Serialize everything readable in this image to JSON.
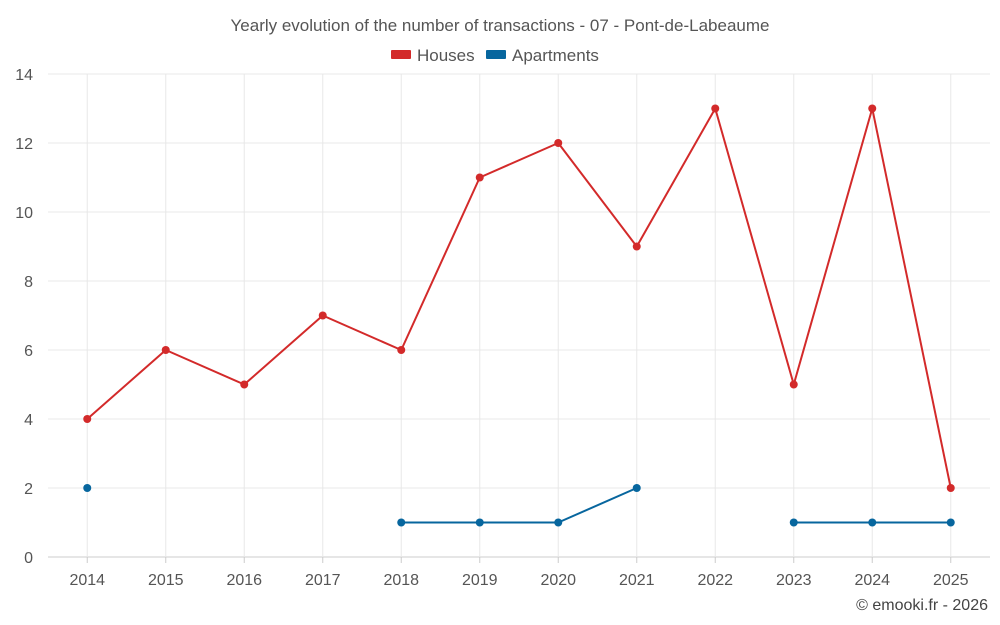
{
  "chart_data": {
    "type": "line",
    "title": "Yearly evolution of the number of transactions - 07 - Pont-de-Labeaume",
    "categories": [
      "2014",
      "2015",
      "2016",
      "2017",
      "2018",
      "2019",
      "2020",
      "2021",
      "2022",
      "2023",
      "2024",
      "2025"
    ],
    "series": [
      {
        "name": "Houses",
        "color": "#d32a2a",
        "values": [
          4,
          6,
          5,
          7,
          6,
          11,
          12,
          9,
          13,
          5,
          13,
          2
        ]
      },
      {
        "name": "Apartments",
        "color": "#07669e",
        "values": [
          2,
          null,
          null,
          null,
          1,
          1,
          1,
          2,
          null,
          1,
          1,
          1
        ]
      }
    ],
    "ylim": [
      0,
      14
    ],
    "yticks": [
      0,
      2,
      4,
      6,
      8,
      10,
      12,
      14
    ],
    "xlabel": "",
    "ylabel": "",
    "grid": true,
    "legend": "top-center"
  },
  "credit": "© emooki.fr - 2026"
}
